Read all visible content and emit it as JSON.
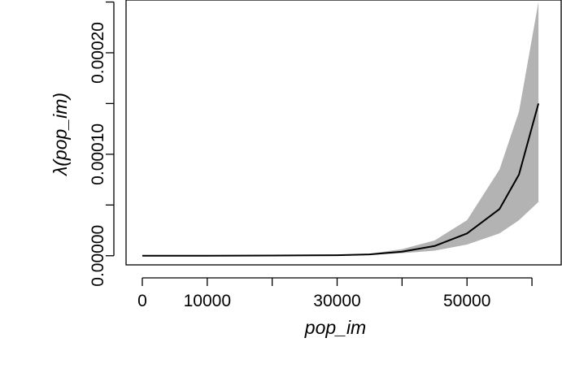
{
  "chart_data": {
    "type": "line",
    "xlabel": "pop_im",
    "ylabel": "λ(pop_im)",
    "xlim": [
      -2500,
      64500
    ],
    "ylim": [
      -9e-06,
      0.000252
    ],
    "x_ticks": [
      0,
      10000,
      20000,
      30000,
      40000,
      50000,
      60000
    ],
    "x_tick_labels": [
      "0",
      "10000",
      "",
      "30000",
      "",
      "50000",
      ""
    ],
    "y_ticks": [
      0,
      5e-05,
      0.0001,
      0.00015,
      0.0002,
      0.00025
    ],
    "y_tick_labels": [
      "0.00000",
      "",
      "0.00010",
      "",
      "0.00020",
      ""
    ],
    "grid": false,
    "series": [
      {
        "kind": "line",
        "color": "#000000",
        "x": [
          0,
          10000,
          20000,
          30000,
          35000,
          40000,
          45000,
          50000,
          55000,
          58000,
          61000
        ],
        "y": [
          0.0,
          0.0,
          2e-07,
          5e-07,
          1.3e-06,
          4e-06,
          9.6e-06,
          2.2e-05,
          4.6e-05,
          8e-05,
          0.00015
        ]
      },
      {
        "kind": "band",
        "color": "#b3b3b3",
        "x": [
          0,
          10000,
          20000,
          30000,
          35000,
          40000,
          45000,
          50000,
          55000,
          58000,
          61000
        ],
        "lower": [
          0.0,
          0.0,
          1e-07,
          3e-07,
          8e-07,
          2.5e-06,
          5e-06,
          1.1e-05,
          2.2e-05,
          3.5e-05,
          5.3e-05
        ],
        "upper": [
          0.0,
          0.0,
          3e-07,
          8e-07,
          2e-06,
          6.5e-06,
          1.5e-05,
          3.5e-05,
          8.5e-05,
          0.000142,
          0.00025
        ]
      }
    ]
  }
}
